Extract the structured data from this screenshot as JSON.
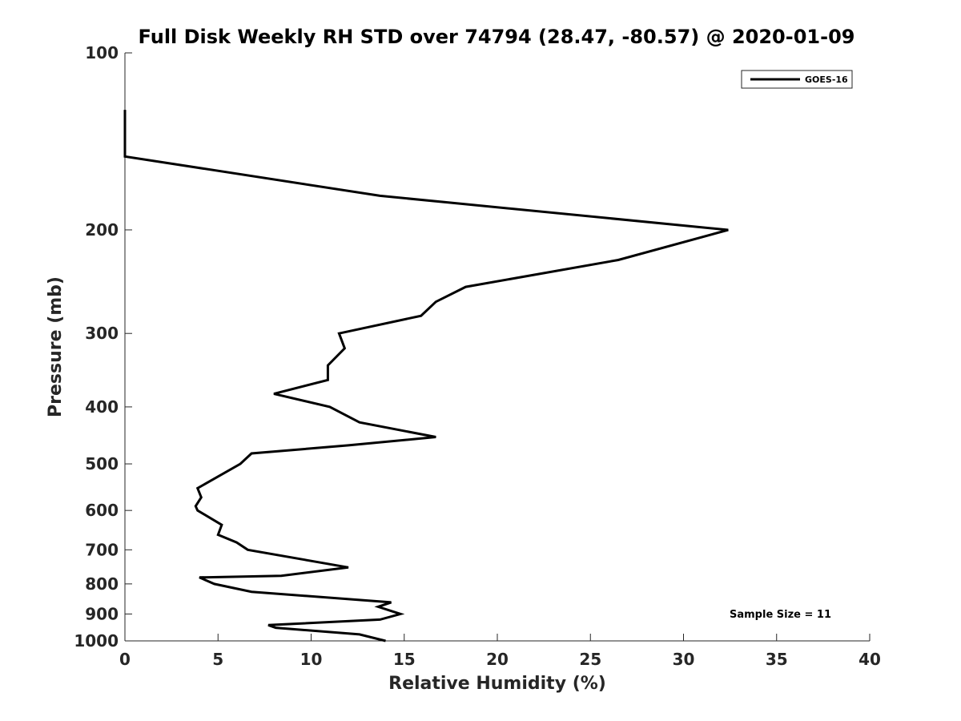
{
  "chart_data": {
    "type": "line",
    "title": "Full Disk Weekly RH STD over 74794 (28.47, -80.57) @ 2020-01-09",
    "xlabel": "Relative Humidity (%)",
    "ylabel": "Pressure (mb)",
    "xlim": [
      0,
      40
    ],
    "ylim": [
      100,
      1000
    ],
    "y_scale": "log",
    "y_reversed": true,
    "x_ticks": [
      0,
      5,
      10,
      15,
      20,
      25,
      30,
      35,
      40
    ],
    "y_ticks": [
      100,
      200,
      300,
      400,
      500,
      600,
      700,
      800,
      900,
      1000
    ],
    "grid": false,
    "legend_position": "top-right",
    "series": [
      {
        "name": "GOES-16",
        "color": "#000000",
        "points": [
          [
            0,
            125
          ],
          [
            0,
            150
          ],
          [
            13.7,
            175
          ],
          [
            32.4,
            200
          ],
          [
            26.5,
            225
          ],
          [
            18.3,
            250
          ],
          [
            16.7,
            265
          ],
          [
            15.9,
            280
          ],
          [
            11.5,
            300
          ],
          [
            11.8,
            318
          ],
          [
            10.9,
            340
          ],
          [
            10.9,
            360
          ],
          [
            8.0,
            380
          ],
          [
            11.0,
            400
          ],
          [
            12.6,
            425
          ],
          [
            16.7,
            450
          ],
          [
            12.0,
            465
          ],
          [
            6.8,
            480
          ],
          [
            6.2,
            500
          ],
          [
            3.9,
            550
          ],
          [
            4.1,
            570
          ],
          [
            3.8,
            590
          ],
          [
            3.9,
            600
          ],
          [
            5.2,
            635
          ],
          [
            5.0,
            660
          ],
          [
            6.0,
            680
          ],
          [
            6.6,
            700
          ],
          [
            12.0,
            750
          ],
          [
            8.4,
            775
          ],
          [
            4.0,
            780
          ],
          [
            4.8,
            800
          ],
          [
            6.8,
            825
          ],
          [
            14.3,
            860
          ],
          [
            13.6,
            875
          ],
          [
            14.8,
            900
          ],
          [
            13.7,
            920
          ],
          [
            7.7,
            940
          ],
          [
            8.1,
            950
          ],
          [
            12.6,
            975
          ],
          [
            14.0,
            1000
          ]
        ]
      }
    ],
    "annotations": [
      "Sample Size = 11"
    ]
  }
}
